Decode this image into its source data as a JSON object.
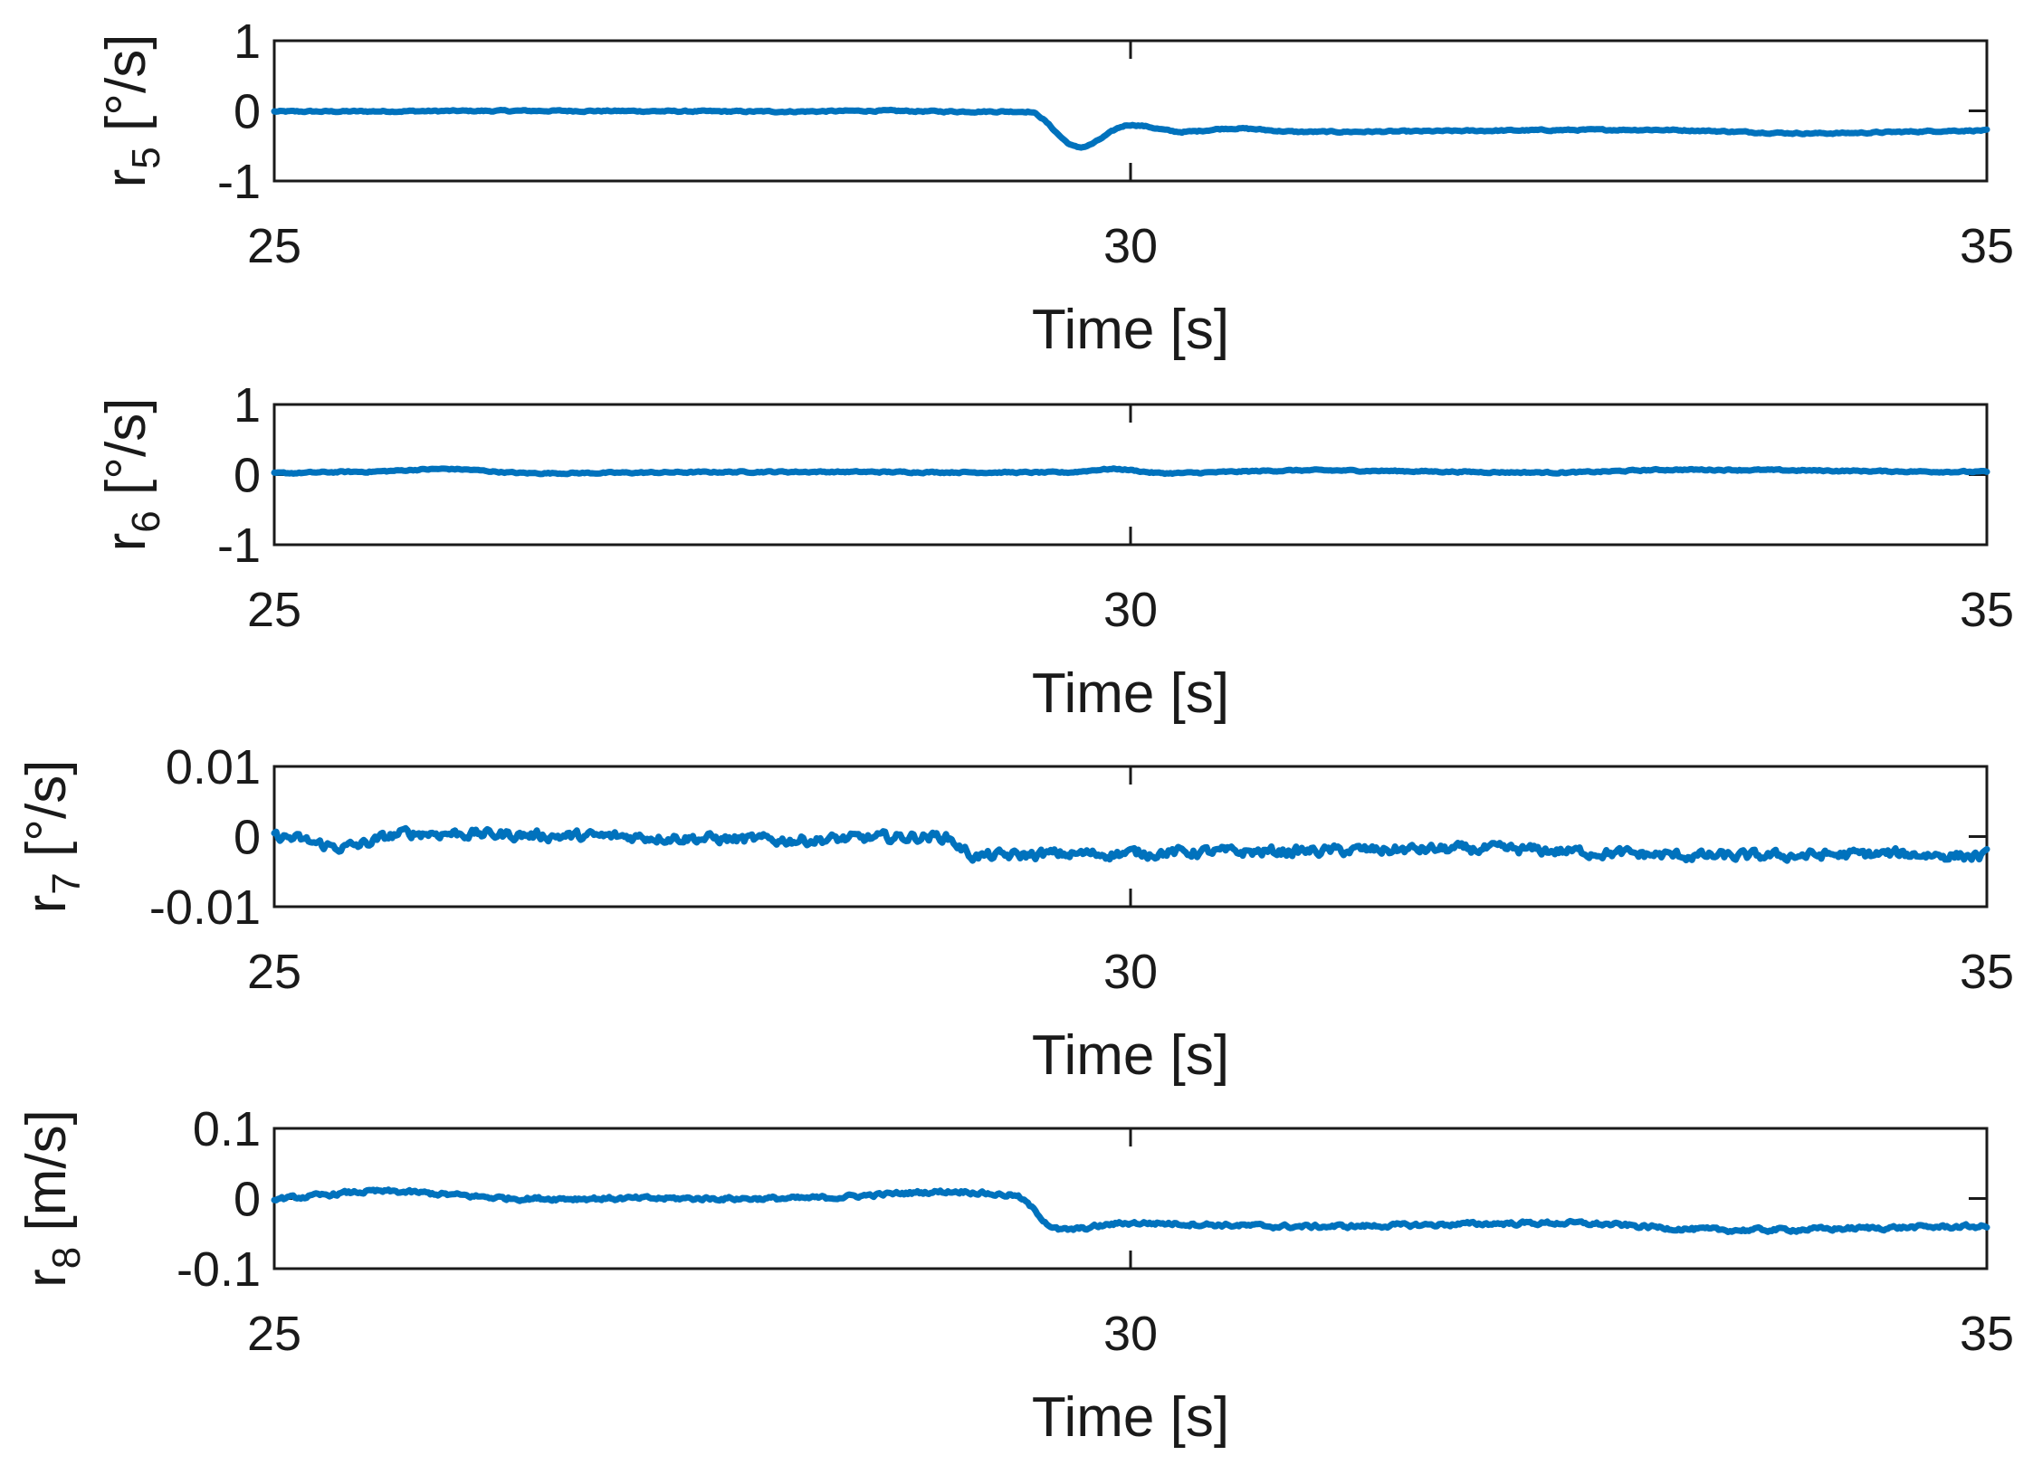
{
  "chart_data": [
    {
      "type": "line",
      "series_name": "r5",
      "ylabel": {
        "main": "r",
        "sub": "5",
        "unit": " [°/s]"
      },
      "xlabel": "Time [s]",
      "xlim": [
        25,
        35
      ],
      "ylim": [
        -1,
        1
      ],
      "xticks": [
        25,
        30,
        35
      ],
      "xtick_labels": [
        "25",
        "30",
        "35"
      ],
      "yticks": [
        -1,
        0,
        1
      ],
      "ytick_labels": [
        "-1",
        "0",
        "1"
      ],
      "color": "#0072BD",
      "anchors": [
        [
          25,
          -0.01
        ],
        [
          26.5,
          0.0
        ],
        [
          28,
          -0.01
        ],
        [
          28.5,
          0.0
        ],
        [
          29,
          -0.01
        ],
        [
          29.4,
          -0.01
        ],
        [
          29.7,
          -0.52
        ],
        [
          30.0,
          -0.2
        ],
        [
          30.3,
          -0.3
        ],
        [
          30.6,
          -0.25
        ],
        [
          31.0,
          -0.3
        ],
        [
          33.0,
          -0.27
        ],
        [
          34.0,
          -0.32
        ],
        [
          35.0,
          -0.28
        ]
      ],
      "noise": 0.02
    },
    {
      "type": "line",
      "series_name": "r6",
      "ylabel": {
        "main": "r",
        "sub": "6",
        "unit": " [°/s]"
      },
      "xlabel": "Time [s]",
      "xlim": [
        25,
        35
      ],
      "ylim": [
        -1,
        1
      ],
      "xticks": [
        25,
        30,
        35
      ],
      "xtick_labels": [
        "25",
        "30",
        "35"
      ],
      "yticks": [
        -1,
        0,
        1
      ],
      "ytick_labels": [
        "-1",
        "0",
        "1"
      ],
      "color": "#0072BD",
      "anchors": [
        [
          25,
          0.02
        ],
        [
          25.5,
          0.04
        ],
        [
          26,
          0.08
        ],
        [
          26.5,
          0.02
        ],
        [
          28,
          0.04
        ],
        [
          29.6,
          0.03
        ],
        [
          29.9,
          0.08
        ],
        [
          30.2,
          0.02
        ],
        [
          31,
          0.06
        ],
        [
          32.5,
          0.03
        ],
        [
          33.2,
          0.07
        ],
        [
          35,
          0.04
        ]
      ],
      "noise": 0.02
    },
    {
      "type": "line",
      "series_name": "r7",
      "ylabel": {
        "main": "r",
        "sub": "7",
        "unit": " [°/s]"
      },
      "xlabel": "Time [s]",
      "xlim": [
        25,
        35
      ],
      "ylim": [
        -0.01,
        0.01
      ],
      "xticks": [
        25,
        30,
        35
      ],
      "xtick_labels": [
        "25",
        "30",
        "35"
      ],
      "yticks": [
        -0.01,
        0,
        0.01
      ],
      "ytick_labels": [
        "-0.01",
        "0",
        "0.01"
      ],
      "color": "#0072BD",
      "anchors": [
        [
          25,
          0.0
        ],
        [
          25.4,
          -0.0015
        ],
        [
          25.8,
          0.0005
        ],
        [
          27,
          0.0
        ],
        [
          28,
          -0.0005
        ],
        [
          28.9,
          0.0
        ],
        [
          29.1,
          -0.0028
        ],
        [
          29.6,
          -0.0025
        ],
        [
          30.5,
          -0.0022
        ],
        [
          32,
          -0.0018
        ],
        [
          33.5,
          -0.0028
        ],
        [
          34.5,
          -0.0025
        ],
        [
          35,
          -0.0028
        ]
      ],
      "noise": 0.0013
    },
    {
      "type": "line",
      "series_name": "r8",
      "ylabel": {
        "main": "r",
        "sub": "8",
        "unit": " [m/s]"
      },
      "xlabel": "Time [s]",
      "xlim": [
        25,
        35
      ],
      "ylim": [
        -0.1,
        0.1
      ],
      "xticks": [
        25,
        30,
        35
      ],
      "xtick_labels": [
        "25",
        "30",
        "35"
      ],
      "yticks": [
        -0.1,
        0,
        0.1
      ],
      "ytick_labels": [
        "-0.1",
        "0",
        "0.1"
      ],
      "color": "#0072BD",
      "anchors": [
        [
          25,
          0.0
        ],
        [
          25.6,
          0.01
        ],
        [
          26.5,
          0.0
        ],
        [
          28,
          0.0
        ],
        [
          29.0,
          0.01
        ],
        [
          29.3,
          0.005
        ],
        [
          29.6,
          -0.045
        ],
        [
          30.0,
          -0.035
        ],
        [
          31.0,
          -0.04
        ],
        [
          32.5,
          -0.035
        ],
        [
          33.5,
          -0.045
        ],
        [
          35,
          -0.04
        ]
      ],
      "noise": 0.005
    }
  ]
}
